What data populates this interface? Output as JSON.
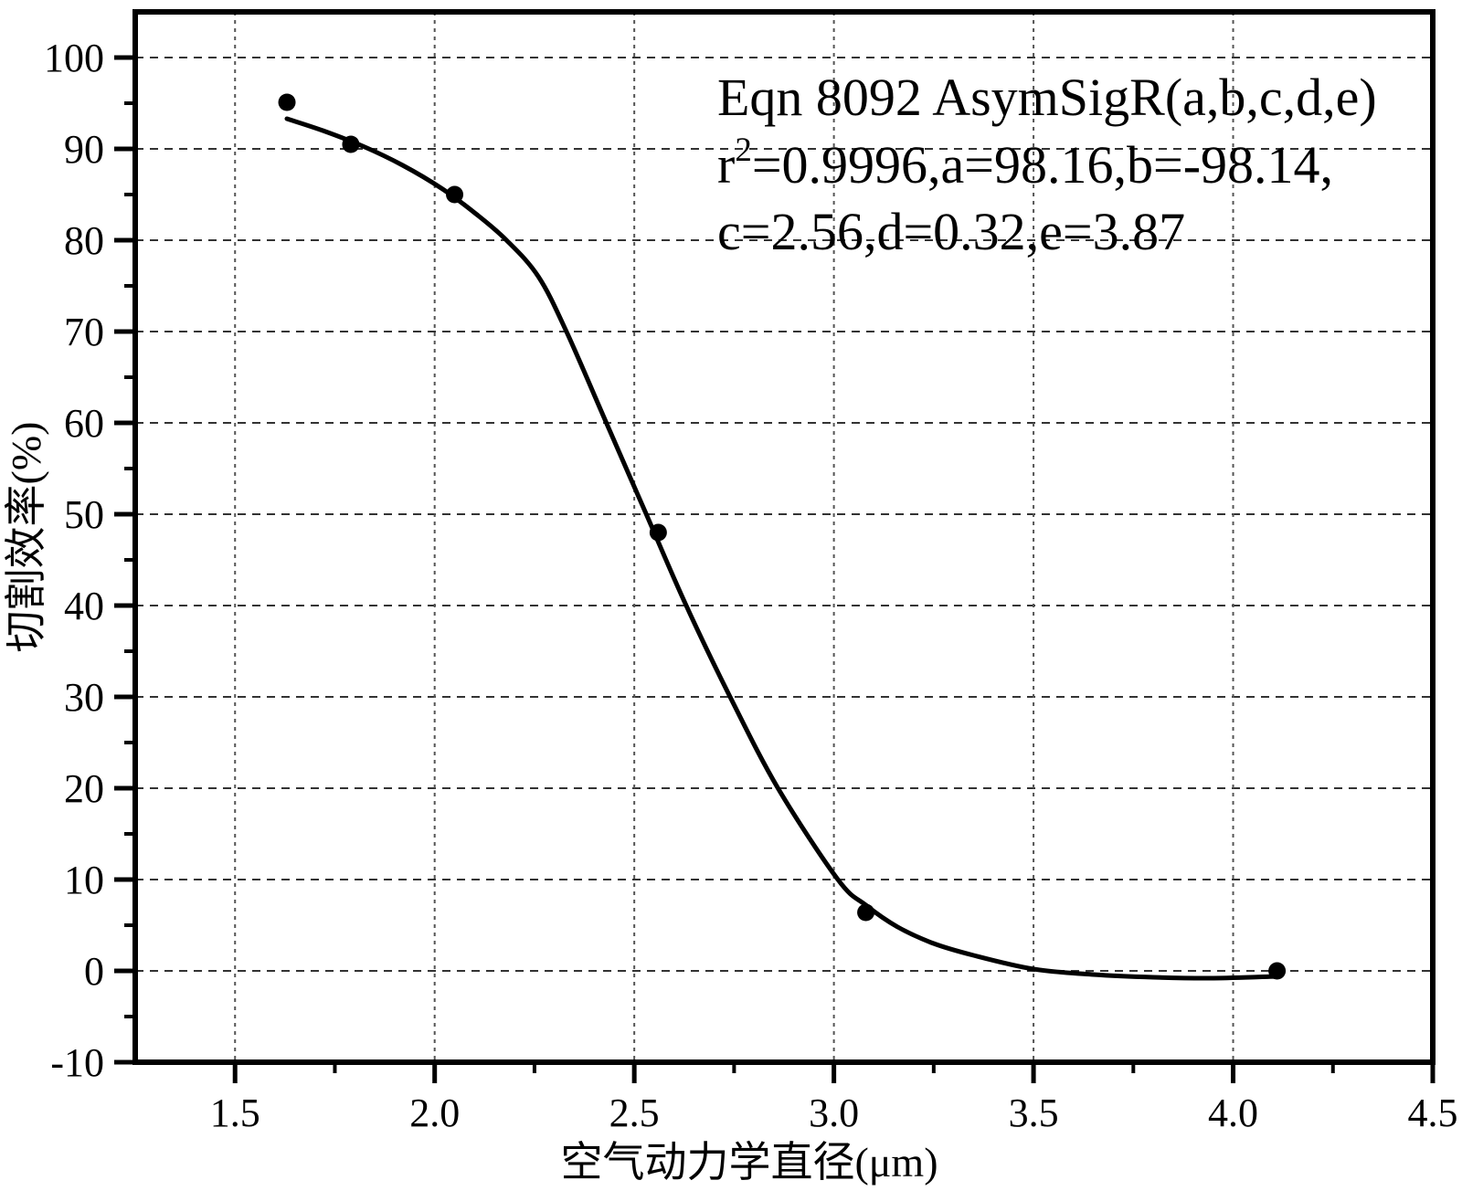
{
  "chart_data": {
    "type": "scatter",
    "title": "",
    "xlabel": "空气动力学直径(μm)",
    "ylabel": "切割效率(%)",
    "xlim": [
      1.25,
      4.5
    ],
    "ylim": [
      -10,
      105
    ],
    "grid": true,
    "legend": "none",
    "x_major_ticks": [
      1.5,
      2.0,
      2.5,
      3.0,
      3.5,
      4.0,
      4.5
    ],
    "x_tick_labels": [
      "1.5",
      "2.0",
      "2.5",
      "3.0",
      "3.5",
      "4.0",
      "4.5"
    ],
    "x_minor_ticks": [
      1.75,
      2.25,
      2.75,
      3.25,
      3.75,
      4.25
    ],
    "y_major_ticks": [
      -10,
      0,
      10,
      20,
      30,
      40,
      50,
      60,
      70,
      80,
      90,
      100
    ],
    "y_tick_labels": [
      "-10",
      "0",
      "10",
      "20",
      "30",
      "40",
      "50",
      "60",
      "70",
      "80",
      "90",
      "100"
    ],
    "y_minor_ticks": [
      -5,
      5,
      15,
      25,
      35,
      45,
      55,
      65,
      75,
      85,
      95
    ],
    "grid_x": [
      1.5,
      2.0,
      2.5,
      3.0,
      3.5,
      4.0
    ],
    "grid_y": [
      0,
      10,
      20,
      30,
      40,
      50,
      60,
      70,
      80,
      90,
      100
    ],
    "series": [
      {
        "name": "measured-points",
        "type": "scatter",
        "marker": "filled-circle",
        "color": "#000000",
        "points": [
          [
            1.63,
            95.1
          ],
          [
            1.79,
            90.5
          ],
          [
            2.05,
            85.0
          ],
          [
            2.56,
            48.0
          ],
          [
            3.08,
            6.4
          ],
          [
            4.11,
            0.0
          ]
        ]
      },
      {
        "name": "fitted-sigmoid-curve",
        "type": "line",
        "color": "#000000",
        "points": [
          [
            1.63,
            93.3
          ],
          [
            1.72,
            92.0
          ],
          [
            1.82,
            90.3
          ],
          [
            1.92,
            88.2
          ],
          [
            2.02,
            85.6
          ],
          [
            2.1,
            83.0
          ],
          [
            2.18,
            80.0
          ],
          [
            2.26,
            76.0
          ],
          [
            2.33,
            70.0
          ],
          [
            2.43,
            60.0
          ],
          [
            2.53,
            50.0
          ],
          [
            2.63,
            40.0
          ],
          [
            2.74,
            30.0
          ],
          [
            2.86,
            20.0
          ],
          [
            3.01,
            10.0
          ],
          [
            3.08,
            7.2
          ],
          [
            3.16,
            4.8
          ],
          [
            3.25,
            3.0
          ],
          [
            3.35,
            1.7
          ],
          [
            3.5,
            0.2
          ],
          [
            3.65,
            -0.4
          ],
          [
            3.8,
            -0.7
          ],
          [
            3.95,
            -0.8
          ],
          [
            4.11,
            -0.6
          ]
        ]
      }
    ],
    "annotation": {
      "line1": "Eqn 8092  AsymSigR(a,b,c,d,e)",
      "line2_base": "r",
      "line2_sup": "2",
      "line2_rest": "=0.9996,a=98.16,b=-98.14,",
      "line3": "c=2.56,d=0.32,e=3.87"
    },
    "fit_params": {
      "eqn": "8092",
      "model": "AsymSigR(a,b,c,d,e)",
      "r2": 0.9996,
      "a": 98.16,
      "b": -98.14,
      "c": 2.56,
      "d": 0.32,
      "e": 3.87
    },
    "colors": {
      "points": "#000000",
      "curve": "#000000",
      "axis": "#000000",
      "grid_horizontal": "#333333",
      "grid_vertical": "#555555",
      "background": "#ffffff"
    }
  }
}
